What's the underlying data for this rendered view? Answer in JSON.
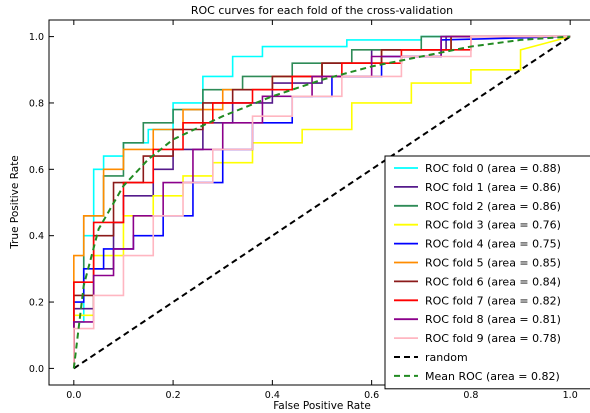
{
  "chart_data": {
    "type": "line",
    "title": "ROC curves for each fold of the cross-validation",
    "xlabel": "False Positive Rate",
    "ylabel": "True Positive Rate",
    "xlim": [
      -0.05,
      1.05
    ],
    "ylim": [
      -0.05,
      1.05
    ],
    "x_ticks": [
      "0.0",
      "0.2",
      "0.4",
      "0.6",
      "0.8",
      "1.0"
    ],
    "y_ticks": [
      "0.0",
      "0.2",
      "0.4",
      "0.6",
      "0.8",
      "1.0"
    ],
    "grid": false,
    "legend_position": "lower-right",
    "series": [
      {
        "name": "ROC fold 0 (area = 0.88)",
        "color": "#00ffff",
        "style": "solid",
        "x": [
          0,
          0,
          0.02,
          0.02,
          0.04,
          0.04,
          0.06,
          0.06,
          0.1,
          0.1,
          0.15,
          0.15,
          0.2,
          0.2,
          0.26,
          0.26,
          0.32,
          0.32,
          0.38,
          0.38,
          0.55,
          0.55,
          0.7,
          0.7,
          1
        ],
        "y": [
          0,
          0.14,
          0.14,
          0.4,
          0.4,
          0.6,
          0.6,
          0.64,
          0.64,
          0.68,
          0.68,
          0.72,
          0.72,
          0.8,
          0.8,
          0.88,
          0.88,
          0.94,
          0.94,
          0.97,
          0.97,
          0.99,
          0.99,
          1,
          1
        ]
      },
      {
        "name": "ROC fold 1 (area = 0.86)",
        "color": "#551a8b",
        "style": "solid",
        "x": [
          0,
          0,
          0.04,
          0.04,
          0.08,
          0.08,
          0.1,
          0.1,
          0.16,
          0.16,
          0.2,
          0.2,
          0.26,
          0.26,
          0.32,
          0.32,
          0.4,
          0.4,
          0.5,
          0.5,
          0.6,
          0.6,
          0.75,
          0.75,
          1
        ],
        "y": [
          0,
          0.18,
          0.18,
          0.3,
          0.3,
          0.44,
          0.44,
          0.52,
          0.52,
          0.6,
          0.6,
          0.66,
          0.66,
          0.74,
          0.74,
          0.8,
          0.8,
          0.86,
          0.86,
          0.92,
          0.92,
          0.96,
          0.96,
          1,
          1
        ]
      },
      {
        "name": "ROC fold 2 (area = 0.86)",
        "color": "#2e8b57",
        "style": "solid",
        "x": [
          0,
          0,
          0.02,
          0.02,
          0.06,
          0.06,
          0.1,
          0.1,
          0.14,
          0.14,
          0.2,
          0.2,
          0.26,
          0.26,
          0.34,
          0.34,
          0.44,
          0.44,
          0.56,
          0.56,
          0.7,
          0.7,
          1
        ],
        "y": [
          0,
          0.26,
          0.26,
          0.46,
          0.46,
          0.58,
          0.58,
          0.68,
          0.68,
          0.74,
          0.74,
          0.78,
          0.78,
          0.84,
          0.84,
          0.88,
          0.88,
          0.92,
          0.92,
          0.96,
          0.96,
          1,
          1
        ]
      },
      {
        "name": "ROC fold 3 (area = 0.76)",
        "color": "#ffff00",
        "style": "solid",
        "x": [
          0,
          0,
          0.04,
          0.04,
          0.1,
          0.1,
          0.16,
          0.16,
          0.22,
          0.22,
          0.28,
          0.28,
          0.36,
          0.36,
          0.46,
          0.46,
          0.56,
          0.56,
          0.68,
          0.68,
          0.8,
          0.8,
          0.9,
          0.9,
          1
        ],
        "y": [
          0,
          0.16,
          0.16,
          0.34,
          0.34,
          0.46,
          0.46,
          0.52,
          0.52,
          0.58,
          0.58,
          0.62,
          0.62,
          0.68,
          0.68,
          0.72,
          0.72,
          0.8,
          0.8,
          0.86,
          0.86,
          0.9,
          0.9,
          0.96,
          1
        ]
      },
      {
        "name": "ROC fold 4 (area = 0.75)",
        "color": "#0000ff",
        "style": "solid",
        "x": [
          0,
          0,
          0.02,
          0.02,
          0.06,
          0.06,
          0.12,
          0.12,
          0.18,
          0.18,
          0.24,
          0.24,
          0.3,
          0.3,
          0.36,
          0.36,
          0.44,
          0.44,
          0.52,
          0.52,
          0.62,
          0.62,
          0.74,
          0.74,
          1
        ],
        "y": [
          0,
          0.2,
          0.2,
          0.3,
          0.3,
          0.36,
          0.36,
          0.4,
          0.4,
          0.46,
          0.46,
          0.56,
          0.56,
          0.66,
          0.66,
          0.74,
          0.74,
          0.82,
          0.82,
          0.88,
          0.88,
          0.94,
          0.94,
          0.99,
          1
        ]
      },
      {
        "name": "ROC fold 5 (area = 0.85)",
        "color": "#ff8c00",
        "style": "solid",
        "x": [
          0,
          0,
          0.02,
          0.02,
          0.06,
          0.06,
          0.1,
          0.1,
          0.16,
          0.16,
          0.22,
          0.22,
          0.3,
          0.3,
          0.4,
          0.4,
          0.5,
          0.5,
          0.62,
          0.62,
          0.76,
          0.76,
          1
        ],
        "y": [
          0,
          0.34,
          0.34,
          0.46,
          0.46,
          0.6,
          0.6,
          0.66,
          0.66,
          0.72,
          0.72,
          0.78,
          0.78,
          0.84,
          0.84,
          0.88,
          0.88,
          0.92,
          0.92,
          0.96,
          0.96,
          1,
          1
        ]
      },
      {
        "name": "ROC fold 6 (area = 0.84)",
        "color": "#8b1a1a",
        "style": "solid",
        "x": [
          0,
          0,
          0.04,
          0.04,
          0.08,
          0.08,
          0.14,
          0.14,
          0.2,
          0.2,
          0.26,
          0.26,
          0.32,
          0.32,
          0.4,
          0.4,
          0.5,
          0.5,
          0.62,
          0.62,
          0.76,
          0.76,
          1
        ],
        "y": [
          0,
          0.22,
          0.22,
          0.4,
          0.4,
          0.56,
          0.56,
          0.64,
          0.64,
          0.72,
          0.72,
          0.8,
          0.8,
          0.84,
          0.84,
          0.88,
          0.88,
          0.92,
          0.92,
          0.96,
          0.96,
          1,
          1
        ]
      },
      {
        "name": "ROC fold 7 (area = 0.82)",
        "color": "#ff0000",
        "style": "solid",
        "x": [
          0,
          0,
          0.04,
          0.04,
          0.1,
          0.1,
          0.16,
          0.16,
          0.22,
          0.22,
          0.28,
          0.28,
          0.36,
          0.36,
          0.44,
          0.44,
          0.54,
          0.54,
          0.66,
          0.66,
          0.8,
          0.8,
          1
        ],
        "y": [
          0,
          0.26,
          0.26,
          0.44,
          0.44,
          0.56,
          0.56,
          0.66,
          0.66,
          0.74,
          0.74,
          0.8,
          0.8,
          0.84,
          0.84,
          0.88,
          0.88,
          0.92,
          0.92,
          0.96,
          0.96,
          1,
          1
        ]
      },
      {
        "name": "ROC fold 8 (area = 0.81)",
        "color": "#8b008b",
        "style": "solid",
        "x": [
          0,
          0,
          0.04,
          0.04,
          0.08,
          0.08,
          0.12,
          0.12,
          0.18,
          0.18,
          0.24,
          0.24,
          0.3,
          0.3,
          0.38,
          0.38,
          0.48,
          0.48,
          0.6,
          0.6,
          0.74,
          0.74,
          1
        ],
        "y": [
          0,
          0.14,
          0.14,
          0.28,
          0.28,
          0.36,
          0.36,
          0.46,
          0.46,
          0.56,
          0.56,
          0.66,
          0.66,
          0.74,
          0.74,
          0.82,
          0.82,
          0.88,
          0.88,
          0.94,
          0.94,
          1,
          1
        ]
      },
      {
        "name": "ROC fold 9 (area = 0.78)",
        "color": "#ffb6c1",
        "style": "solid",
        "x": [
          0,
          0,
          0.04,
          0.04,
          0.1,
          0.1,
          0.16,
          0.16,
          0.22,
          0.22,
          0.28,
          0.28,
          0.36,
          0.36,
          0.44,
          0.44,
          0.54,
          0.54,
          0.66,
          0.66,
          0.8,
          0.8,
          1
        ],
        "y": [
          0,
          0.12,
          0.12,
          0.22,
          0.22,
          0.34,
          0.34,
          0.46,
          0.46,
          0.56,
          0.56,
          0.66,
          0.66,
          0.76,
          0.76,
          0.82,
          0.82,
          0.88,
          0.88,
          0.94,
          0.94,
          1,
          1
        ]
      },
      {
        "name": "random",
        "color": "#000000",
        "style": "dashed",
        "x": [
          0,
          1
        ],
        "y": [
          0,
          1
        ]
      },
      {
        "name": "Mean ROC (area = 0.82)",
        "color": "#228b22",
        "style": "dashed",
        "x": [
          0,
          0.02,
          0.05,
          0.1,
          0.15,
          0.2,
          0.3,
          0.4,
          0.5,
          0.6,
          0.7,
          0.8,
          0.9,
          1
        ],
        "y": [
          0,
          0.25,
          0.42,
          0.55,
          0.63,
          0.69,
          0.76,
          0.82,
          0.87,
          0.91,
          0.94,
          0.97,
          0.99,
          1
        ]
      }
    ]
  }
}
